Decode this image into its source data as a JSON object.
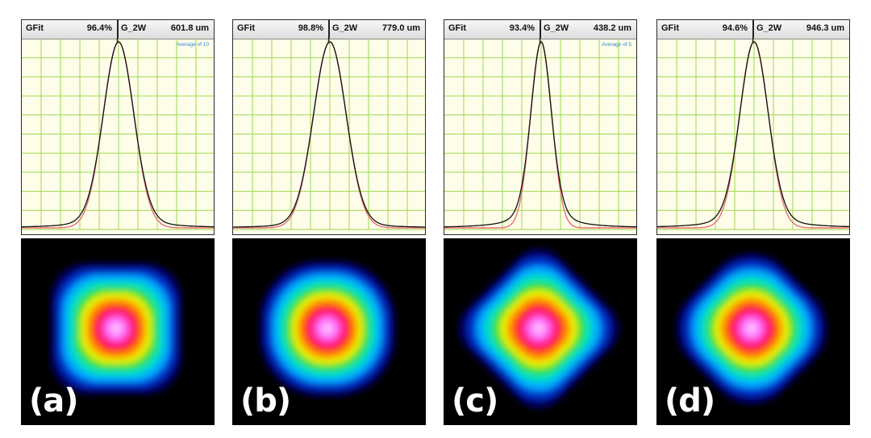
{
  "chart_data": [
    {
      "type": "line",
      "label": "(a)",
      "fit_name": "GFit",
      "fit_value": "96.4%",
      "mode": "G_2W",
      "width": "601.8 um",
      "note": "Average of 10",
      "profile": {
        "center": 0.5,
        "sigma": 0.08,
        "tail": 0.45
      },
      "beam": {
        "shape": "rounded-square",
        "rotation_deg": 0,
        "squareness": 0.7
      }
    },
    {
      "type": "line",
      "label": "(b)",
      "fit_name": "GFit",
      "fit_value": "98.8%",
      "mode": "G_2W",
      "width": "779.0 um",
      "note": "",
      "profile": {
        "center": 0.5,
        "sigma": 0.085,
        "tail": 0.3
      },
      "beam": {
        "shape": "circle",
        "rotation_deg": 0,
        "squareness": 0.2
      }
    },
    {
      "type": "line",
      "label": "(c)",
      "fit_name": "GFit",
      "fit_value": "93.4%",
      "mode": "G_2W",
      "width": "438.2 um",
      "note": "Average of 5",
      "profile": {
        "center": 0.5,
        "sigma": 0.055,
        "tail": 0.9
      },
      "beam": {
        "shape": "diamond",
        "rotation_deg": 45,
        "squareness": 0.9
      }
    },
    {
      "type": "line",
      "label": "(d)",
      "fit_name": "GFit",
      "fit_value": "94.6%",
      "mode": "G_2W",
      "width": "946.3 um",
      "note": "",
      "profile": {
        "center": 0.5,
        "sigma": 0.075,
        "tail": 0.6
      },
      "beam": {
        "shape": "rounded-diamond",
        "rotation_deg": 45,
        "squareness": 0.55
      }
    }
  ],
  "colors": {
    "plot_background": "#fdfdea",
    "grid": "#9fd84a",
    "measured_line": "#111111",
    "fit_line": "#e87070",
    "beam_palette": [
      "#000000",
      "#000066",
      "#0033cc",
      "#00a8ff",
      "#00e0c0",
      "#30e030",
      "#e8f000",
      "#ff8c00",
      "#ff1a1a",
      "#ff2aa0",
      "#ff70ff",
      "#ffb8ff"
    ]
  }
}
